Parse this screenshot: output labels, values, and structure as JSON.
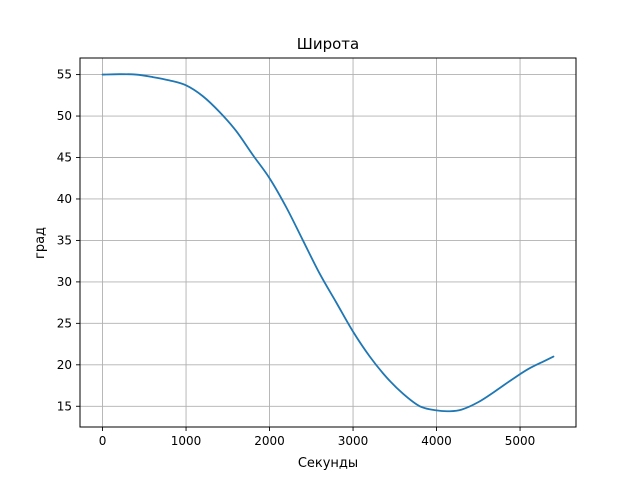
{
  "chart_data": {
    "type": "line",
    "title": "Широта",
    "xlabel": "Секунды",
    "ylabel": "град",
    "xlim": [
      -270,
      5670
    ],
    "ylim": [
      12.5,
      57.0
    ],
    "xticks": [
      0,
      1000,
      2000,
      3000,
      4000,
      5000
    ],
    "yticks": [
      15,
      20,
      25,
      30,
      35,
      40,
      45,
      50,
      55
    ],
    "grid": true,
    "series": [
      {
        "color": "#1f77b4",
        "x": [
          0,
          200,
          400,
          600,
          800,
          1000,
          1200,
          1400,
          1600,
          1800,
          2000,
          2200,
          2400,
          2600,
          2800,
          3000,
          3200,
          3400,
          3600,
          3800,
          4000,
          4150,
          4300,
          4500,
          4700,
          4900,
          5100,
          5300,
          5400
        ],
        "y": [
          55.0,
          55.05,
          55.0,
          54.7,
          54.3,
          53.7,
          52.4,
          50.5,
          48.2,
          45.3,
          42.5,
          39.0,
          35.0,
          31.0,
          27.5,
          24.0,
          21.0,
          18.5,
          16.5,
          15.0,
          14.5,
          14.4,
          14.6,
          15.5,
          16.8,
          18.2,
          19.5,
          20.5,
          21.0
        ]
      }
    ]
  }
}
